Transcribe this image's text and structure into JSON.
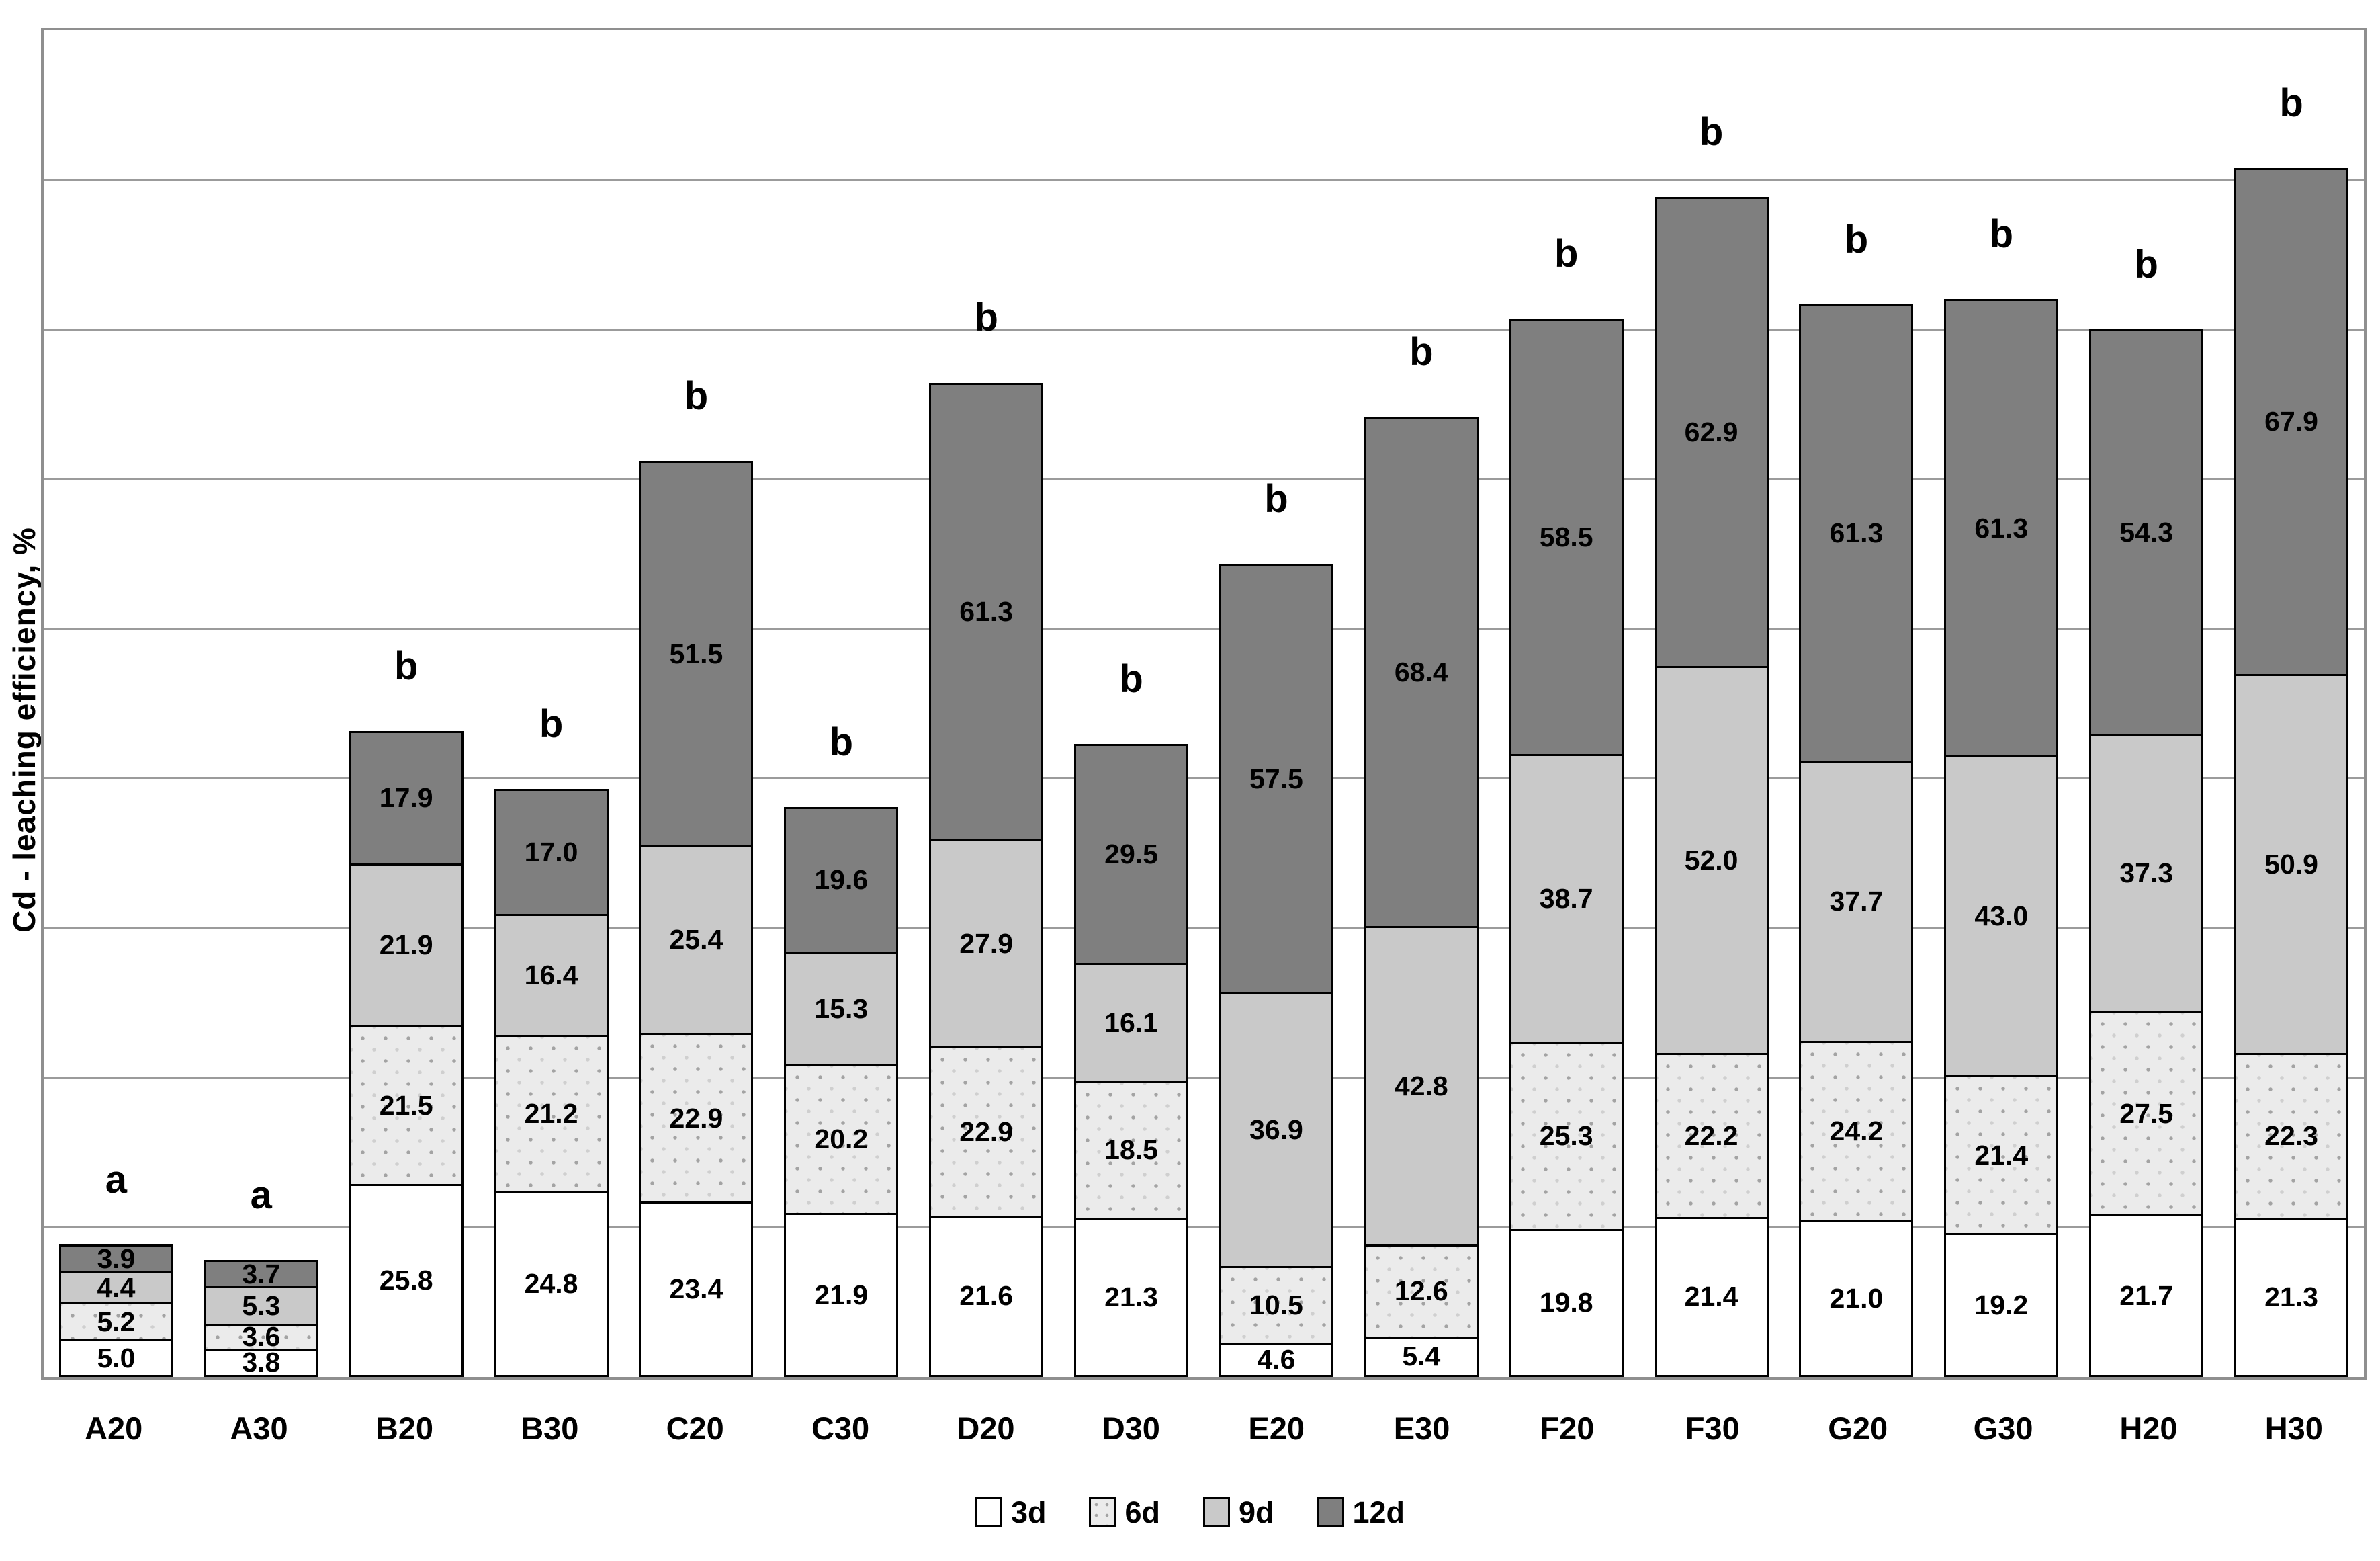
{
  "chart_data": {
    "type": "bar",
    "subtype": "stacked-vertical",
    "title": "",
    "ylabel": "Cd - leaching efficiency, %",
    "xlabel": "",
    "ylim": [
      0,
      180
    ],
    "gridline_step": 20,
    "grid": true,
    "y_tick_labels_visible": false,
    "legend_position": "bottom",
    "categories": [
      "A20",
      "A30",
      "B20",
      "B30",
      "C20",
      "C30",
      "D20",
      "D30",
      "E20",
      "E30",
      "F20",
      "F30",
      "G20",
      "G30",
      "H20",
      "H30"
    ],
    "significance_letters": [
      "a",
      "a",
      "b",
      "b",
      "b",
      "b",
      "b",
      "b",
      "b",
      "b",
      "b",
      "b",
      "b",
      "b",
      "b",
      "b"
    ],
    "series": [
      {
        "name": "3d",
        "color": "#ffffff",
        "values": [
          5.0,
          3.8,
          25.8,
          24.8,
          23.4,
          21.9,
          21.6,
          21.3,
          4.6,
          5.4,
          19.8,
          21.4,
          21.0,
          19.2,
          21.7,
          21.3
        ]
      },
      {
        "name": "6d",
        "color": "#ebebeb",
        "values": [
          5.2,
          3.6,
          21.5,
          21.2,
          22.9,
          20.2,
          22.9,
          18.5,
          10.5,
          12.6,
          25.3,
          22.2,
          24.2,
          21.4,
          27.5,
          22.3
        ]
      },
      {
        "name": "9d",
        "color": "#c9c9c9",
        "values": [
          4.4,
          5.3,
          21.9,
          16.4,
          25.4,
          15.3,
          27.9,
          16.1,
          36.9,
          42.8,
          38.7,
          52.0,
          37.7,
          43.0,
          37.3,
          50.9
        ]
      },
      {
        "name": "12d",
        "color": "#7f7f7f",
        "values": [
          3.9,
          3.7,
          17.9,
          17.0,
          51.5,
          19.6,
          61.3,
          29.5,
          57.5,
          68.4,
          58.5,
          62.9,
          61.3,
          61.3,
          54.3,
          67.9
        ]
      }
    ],
    "colors": {
      "segment_border": "#000000",
      "gridline": "#9b9b9b",
      "plot_border": "#8f8f8f",
      "text": "#000000"
    }
  }
}
